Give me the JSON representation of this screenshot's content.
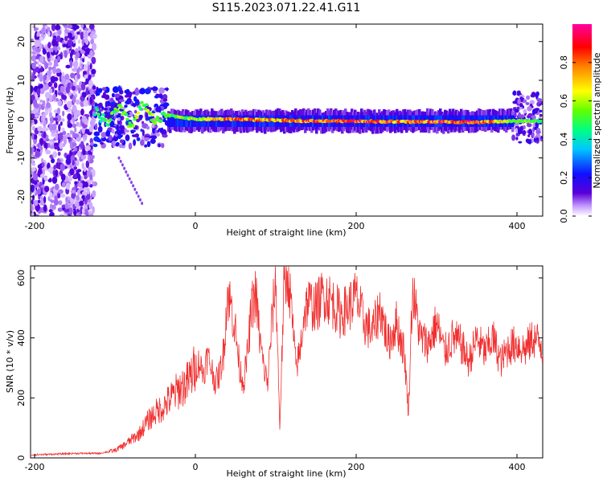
{
  "page_title": "S115.2023.071.22.41.G11",
  "colors": {
    "snr_line": "#f03030",
    "axis": "#000000"
  },
  "chart_data": [
    {
      "type": "heatmap",
      "xlabel": "Height of straight line (km)",
      "ylabel": "Frequency (Hz)",
      "xlim": [
        -205,
        432
      ],
      "ylim": [
        -25,
        24.5
      ],
      "x_ticks": [
        -200,
        0,
        200,
        400
      ],
      "y_ticks": [
        -20,
        -10,
        0,
        10,
        20
      ],
      "colorbar": {
        "label": "Normalized spectral amplitude",
        "range": [
          0,
          1
        ],
        "ticks": [
          0.0,
          0.2,
          0.4,
          0.6,
          0.8
        ],
        "colormap": [
          "#4b0082",
          "#5a00d8",
          "#0000ff",
          "#00c8ff",
          "#00ff80",
          "#a0ff00",
          "#ffff00",
          "#ff8000",
          "#ff0000",
          "#ff00a0"
        ]
      },
      "regions": [
        {
          "x_range": [
            -205,
            -125
          ],
          "f_range": [
            -25,
            24.5
          ],
          "amplitude": 0.1,
          "description": "broadband noise"
        },
        {
          "x_range": [
            -125,
            -35
          ],
          "f_range": [
            -7,
            8
          ],
          "amplitude": 0.3
        },
        {
          "x_range": [
            -35,
            395
          ],
          "f_range": [
            -2,
            1
          ],
          "amplitude": 0.5
        },
        {
          "x_range": [
            395,
            432
          ],
          "f_range": [
            -6,
            7
          ],
          "amplitude": 0.2
        }
      ],
      "peak_line": {
        "x": [
          -125,
          -110,
          -95,
          -80,
          -65,
          -50,
          -35,
          0,
          50,
          100,
          150,
          200,
          250,
          300,
          350,
          395,
          432
        ],
        "f": [
          2,
          -1,
          3,
          -2,
          4,
          -1,
          1,
          0,
          0,
          -0.3,
          -0.5,
          -0.5,
          -0.7,
          -0.7,
          -0.8,
          -0.5,
          -0.5
        ],
        "amplitude": [
          0.5,
          0.55,
          0.6,
          0.55,
          0.6,
          0.6,
          0.55,
          0.6,
          0.9,
          0.75,
          0.9,
          0.9,
          0.85,
          0.9,
          0.9,
          0.6,
          0.5
        ]
      }
    },
    {
      "type": "line",
      "xlabel": "Height of straight line (km)",
      "ylabel": "SNR (10 * v/v)",
      "xlim": [
        -205,
        432
      ],
      "ylim": [
        0,
        640
      ],
      "x_ticks": [
        -200,
        0,
        200,
        400
      ],
      "y_ticks": [
        0,
        200,
        400,
        600
      ],
      "series": [
        {
          "x": [
            -205,
            -180,
            -150,
            -120,
            -100,
            -90,
            -80,
            -70,
            -60,
            -50,
            -40,
            -30,
            -20,
            -10,
            0,
            5,
            10,
            15,
            20,
            25,
            30,
            35,
            40,
            45,
            50,
            55,
            60,
            65,
            70,
            75,
            80,
            85,
            90,
            95,
            100,
            105,
            110,
            115,
            120,
            125,
            130,
            135,
            140,
            150,
            160,
            170,
            180,
            190,
            200,
            210,
            220,
            230,
            240,
            250,
            260,
            265,
            270,
            280,
            290,
            300,
            310,
            320,
            330,
            340,
            350,
            360,
            370,
            380,
            390,
            400,
            410,
            420,
            430,
            432
          ],
          "y": [
            10,
            12,
            15,
            15,
            25,
            40,
            60,
            80,
            120,
            150,
            170,
            200,
            230,
            250,
            300,
            320,
            280,
            340,
            300,
            250,
            280,
            350,
            550,
            500,
            420,
            300,
            250,
            350,
            500,
            550,
            400,
            300,
            250,
            450,
            600,
            100,
            550,
            620,
            480,
            300,
            350,
            480,
            520,
            500,
            550,
            520,
            480,
            500,
            540,
            450,
            420,
            500,
            380,
            450,
            350,
            150,
            560,
            400,
            380,
            450,
            350,
            400,
            380,
            320,
            400,
            350,
            400,
            320,
            370,
            380,
            360,
            400,
            380,
            350
          ]
        }
      ]
    }
  ]
}
